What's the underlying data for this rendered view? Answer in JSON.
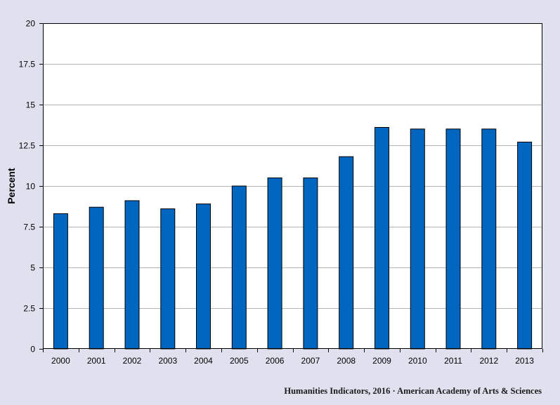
{
  "chart_data": {
    "type": "bar",
    "title": "",
    "xlabel": "",
    "ylabel": "Percent",
    "ylim": [
      0,
      20
    ],
    "yticks": [
      "0",
      "2.5",
      "5",
      "7.5",
      "10",
      "12.5",
      "15",
      "17.5",
      "20"
    ],
    "ytick_values": [
      0,
      2.5,
      5,
      7.5,
      10,
      12.5,
      15,
      17.5,
      20
    ],
    "categories": [
      "2000",
      "2001",
      "2002",
      "2003",
      "2004",
      "2005",
      "2006",
      "2007",
      "2008",
      "2009",
      "2010",
      "2011",
      "2012",
      "2013"
    ],
    "values": [
      8.3,
      8.7,
      9.1,
      8.6,
      8.9,
      10.0,
      10.5,
      10.5,
      11.8,
      13.6,
      13.5,
      13.5,
      13.5,
      12.7
    ],
    "grid": true,
    "legend": "none",
    "colors": {
      "bar_fill": "#0066c0",
      "bar_stroke": "#000000",
      "plot_background": "#ffffff",
      "page_background": "#dfe1ef",
      "grid": "#b4b4b4"
    }
  },
  "footer": {
    "attribution": "Humanities Indicators, 2016 · American Academy of Arts & Sciences"
  }
}
